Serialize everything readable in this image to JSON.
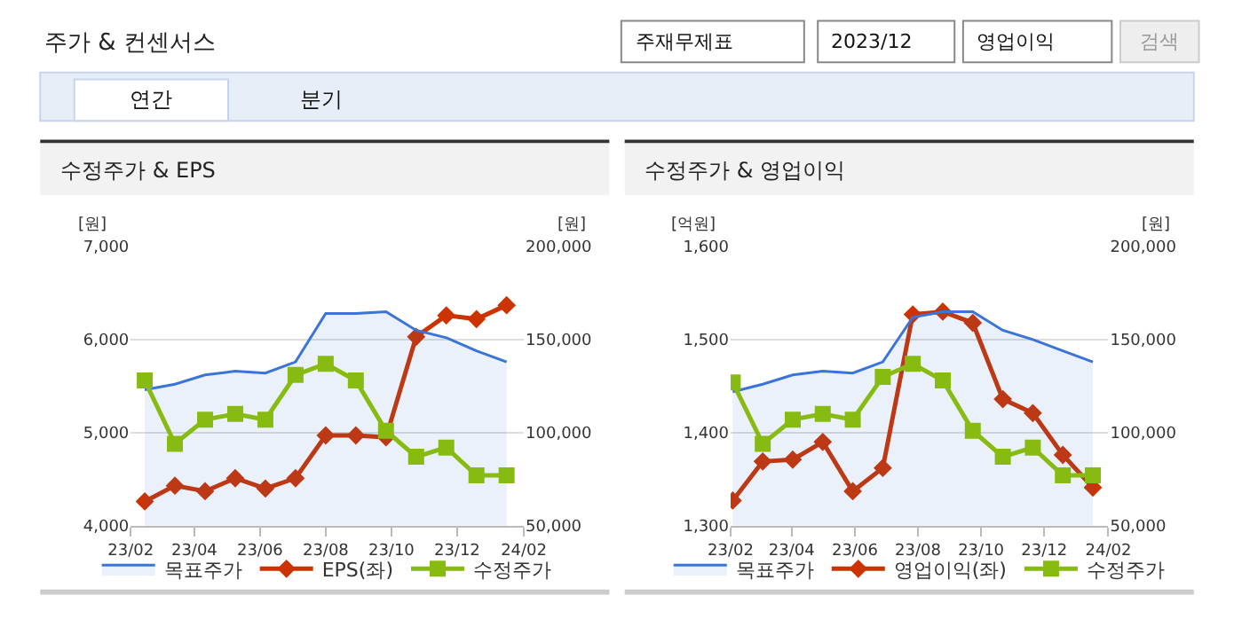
{
  "chart_data": [
    {
      "type": "other",
      "title": "주가 & 컨센서스",
      "annotations": [
        "주재무제표",
        "2023/12",
        "영업이익",
        "검색",
        "연간",
        "분기"
      ]
    },
    {
      "type": "line",
      "title": "수정주가 & EPS",
      "ylabel": "[원]",
      "y2label": "[원]",
      "x": [
        "2023-02-14",
        "2023-03-14",
        "2023-04-11",
        "2023-05-09",
        "2023-06-06",
        "2023-07-04",
        "2023-08-01",
        "2023-08-29",
        "2023-09-26",
        "2023-10-24",
        "2023-11-21",
        "2023-12-19",
        "2024-01-16"
      ],
      "xlim": [
        "2023-02",
        "2024-02"
      ],
      "xticks": [
        {
          "value": "2023-02",
          "label": "23/02"
        },
        {
          "value": "2023-04",
          "label": "23/04"
        },
        {
          "value": "2023-06",
          "label": "23/06"
        },
        {
          "value": "2023-08",
          "label": "23/08"
        },
        {
          "value": "2023-10",
          "label": "23/10"
        },
        {
          "value": "2023-12",
          "label": "23/12"
        },
        {
          "value": "2024-02",
          "label": "24/02"
        }
      ],
      "ylim": [
        4000,
        7000
      ],
      "yticks": [
        {
          "value": 4000,
          "label": "4,000"
        },
        {
          "value": 5000,
          "label": "5,000"
        },
        {
          "value": 6000,
          "label": "6,000"
        },
        {
          "value": 7000,
          "label": "7,000"
        }
      ],
      "y2lim": [
        50000,
        200000
      ],
      "y2ticks": [
        {
          "value": 50000,
          "label": "50,000"
        },
        {
          "value": 100000,
          "label": "100,000"
        },
        {
          "value": 150000,
          "label": "150,000"
        },
        {
          "value": 200000,
          "label": "200,000"
        }
      ],
      "grid": "y",
      "legend": "bottom",
      "series": [
        {
          "name": "목표주가",
          "type": "area",
          "axis": "y2",
          "color": "#3a74d8",
          "marker": "none",
          "values": [
            123000,
            126000,
            131000,
            133000,
            132000,
            138000,
            164000,
            164000,
            165000,
            155000,
            151000,
            144000,
            138000
          ]
        },
        {
          "name": "EPS(좌)",
          "type": "line",
          "color": "#cc3300",
          "marker": "diamond",
          "values": [
            4260,
            4430,
            4370,
            4510,
            4400,
            4510,
            4970,
            4970,
            4950,
            6030,
            6260,
            6220,
            6370
          ]
        },
        {
          "name": "수정주가",
          "type": "line",
          "axis": "y2",
          "color": "#88bb11",
          "marker": "square",
          "values": [
            128000,
            94000,
            107000,
            110000,
            107000,
            131000,
            137000,
            128000,
            101000,
            87000,
            92000,
            77000,
            77000
          ]
        }
      ]
    },
    {
      "type": "line",
      "title": "수정주가 & 영업이익",
      "ylabel": "[억원]",
      "y2label": "[원]",
      "x": [
        "2023-02-03",
        "2023-03-04",
        "2023-04-02",
        "2023-05-01",
        "2023-05-30",
        "2023-06-28",
        "2023-07-27",
        "2023-08-25",
        "2023-09-23",
        "2023-10-22",
        "2023-11-20",
        "2023-12-19",
        "2024-01-17"
      ],
      "xlim": [
        "2023-02",
        "2024-02"
      ],
      "xticks": [
        {
          "value": "2023-02",
          "label": "23/02"
        },
        {
          "value": "2023-04",
          "label": "23/04"
        },
        {
          "value": "2023-06",
          "label": "23/06"
        },
        {
          "value": "2023-08",
          "label": "23/08"
        },
        {
          "value": "2023-10",
          "label": "23/10"
        },
        {
          "value": "2023-12",
          "label": "23/12"
        },
        {
          "value": "2024-02",
          "label": "24/02"
        }
      ],
      "ylim": [
        1300,
        1600
      ],
      "yticks": [
        {
          "value": 1300,
          "label": "1,300"
        },
        {
          "value": 1400,
          "label": "1,400"
        },
        {
          "value": 1500,
          "label": "1,500"
        },
        {
          "value": 1600,
          "label": "1,600"
        }
      ],
      "y2lim": [
        50000,
        200000
      ],
      "y2ticks": [
        {
          "value": 50000,
          "label": "50,000"
        },
        {
          "value": 100000,
          "label": "100,000"
        },
        {
          "value": 150000,
          "label": "150,000"
        },
        {
          "value": 200000,
          "label": "200,000"
        }
      ],
      "grid": "y",
      "legend": "bottom",
      "series": [
        {
          "name": "목표주가",
          "type": "area",
          "axis": "y2",
          "color": "#3a74d8",
          "marker": "none",
          "values": [
            122000,
            126000,
            131000,
            133000,
            132000,
            138000,
            162000,
            165000,
            165000,
            155000,
            150000,
            144000,
            138000
          ]
        },
        {
          "name": "영업이익(좌)",
          "type": "line",
          "color": "#cc3300",
          "marker": "diamond",
          "values": [
            1327,
            1369,
            1371,
            1390,
            1337,
            1362,
            1527,
            1530,
            1518,
            1436,
            1421,
            1376,
            1341
          ]
        },
        {
          "name": "수정주가",
          "type": "line",
          "axis": "y2",
          "color": "#88bb11",
          "marker": "square",
          "values": [
            127000,
            94000,
            107000,
            110000,
            107000,
            130000,
            137000,
            128000,
            101000,
            87000,
            92000,
            77000,
            77000
          ]
        }
      ]
    }
  ]
}
